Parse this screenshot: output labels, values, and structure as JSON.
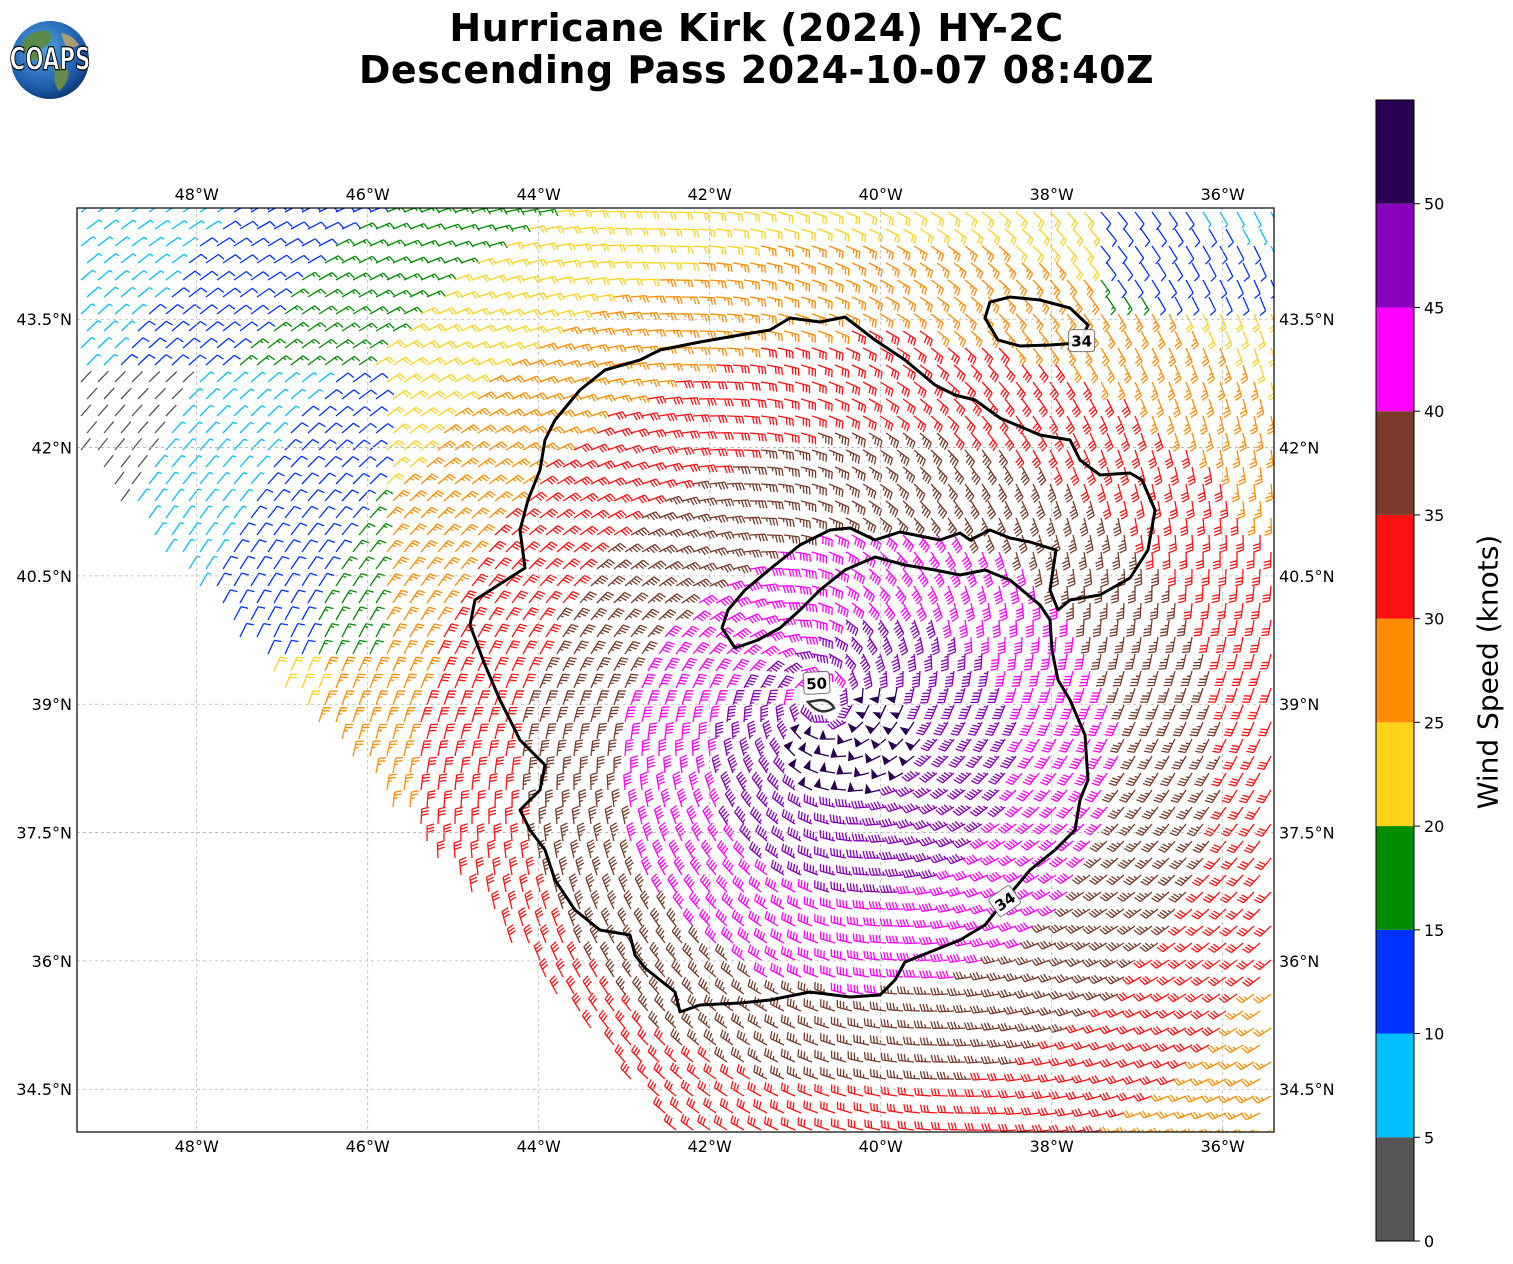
{
  "title": {
    "line1": "Hurricane Kirk (2024) HY-2C",
    "line2": "Descending Pass 2024-10-07 08:40Z"
  },
  "logo": {
    "text": "COAPS"
  },
  "map": {
    "lon_ticks": [
      {
        "value": -48,
        "label": "48°W"
      },
      {
        "value": -46,
        "label": "46°W"
      },
      {
        "value": -44,
        "label": "44°W"
      },
      {
        "value": -42,
        "label": "42°W"
      },
      {
        "value": -40,
        "label": "40°W"
      },
      {
        "value": -38,
        "label": "38°W"
      },
      {
        "value": -36,
        "label": "36°W"
      }
    ],
    "lat_ticks": [
      {
        "value": 43.5,
        "label": "43.5°N"
      },
      {
        "value": 42,
        "label": "42°N"
      },
      {
        "value": 40.5,
        "label": "40.5°N"
      },
      {
        "value": 39,
        "label": "39°N"
      },
      {
        "value": 37.5,
        "label": "37.5°N"
      },
      {
        "value": 36,
        "label": "36°N"
      },
      {
        "value": 34.5,
        "label": "34.5°N"
      }
    ],
    "extent": {
      "lon": [
        -49.4,
        -35.4
      ],
      "lat": [
        34.0,
        44.8
      ]
    },
    "grid": true,
    "storm_center": {
      "lon": -40.7,
      "lat": 39.05
    },
    "contour_labels": [
      {
        "text": "34",
        "lon": -37.65,
        "lat": 43.25
      },
      {
        "text": "50",
        "lon": -40.75,
        "lat": 39.25
      },
      {
        "text": "34",
        "lon": -38.55,
        "lat": 36.7
      }
    ]
  },
  "colorbar": {
    "label": "Wind Speed (knots)",
    "bins": [
      {
        "min": 0,
        "max": 5,
        "color": "#555555"
      },
      {
        "min": 5,
        "max": 10,
        "color": "#00bfff"
      },
      {
        "min": 10,
        "max": 15,
        "color": "#0033ff"
      },
      {
        "min": 15,
        "max": 20,
        "color": "#008c00"
      },
      {
        "min": 20,
        "max": 25,
        "color": "#ffd21a"
      },
      {
        "min": 25,
        "max": 30,
        "color": "#ff8c00"
      },
      {
        "min": 30,
        "max": 35,
        "color": "#ff1111"
      },
      {
        "min": 35,
        "max": 40,
        "color": "#7a3b2a"
      },
      {
        "min": 40,
        "max": 45,
        "color": "#ff00ff"
      },
      {
        "min": 45,
        "max": 50,
        "color": "#8800bb"
      },
      {
        "min": 50,
        "max": 55,
        "color": "#2a0055"
      }
    ],
    "ticks": [
      "0",
      "5",
      "10",
      "15",
      "20",
      "25",
      "30",
      "35",
      "40",
      "45",
      "50"
    ]
  }
}
